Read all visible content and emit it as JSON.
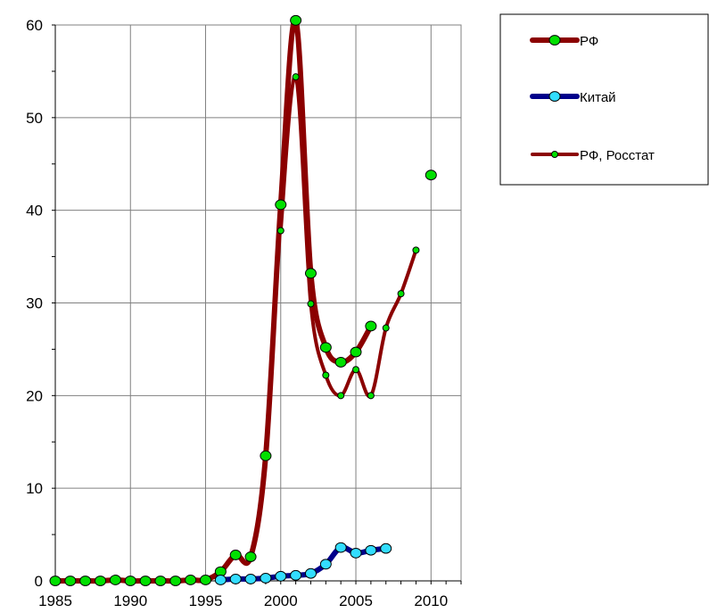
{
  "chart_data": {
    "type": "line",
    "title": "",
    "xlabel": "",
    "ylabel": "",
    "xlim": [
      1985,
      2012
    ],
    "ylim": [
      0,
      60
    ],
    "x_ticks": [
      1985,
      1990,
      1995,
      2000,
      2005,
      2010
    ],
    "x_tick_labels": [
      "1985",
      "1990",
      "1995",
      "2000",
      "2005",
      "2010"
    ],
    "y_ticks": [
      0,
      10,
      20,
      30,
      40,
      50,
      60
    ],
    "y_tick_labels": [
      "0",
      "10",
      "20",
      "30",
      "40",
      "50",
      "60"
    ],
    "grid": true,
    "legend_position": "top-right",
    "series": [
      {
        "name": "РФ",
        "line_color": "#8b0000",
        "marker_color": "#00e000",
        "marker": "large-circle",
        "points": [
          [
            1985,
            0
          ],
          [
            1986,
            0
          ],
          [
            1987,
            0
          ],
          [
            1988,
            0
          ],
          [
            1989,
            0.1
          ],
          [
            1990,
            0
          ],
          [
            1991,
            0
          ],
          [
            1992,
            0
          ],
          [
            1993,
            0
          ],
          [
            1994,
            0.1
          ],
          [
            1995,
            0.1
          ],
          [
            1996,
            1
          ],
          [
            1997,
            2.8
          ],
          [
            1998,
            2.6
          ],
          [
            1999,
            13.5
          ],
          [
            2000,
            40.6
          ],
          [
            2001,
            60.5
          ],
          [
            2002,
            33.2
          ],
          [
            2003,
            25.2
          ],
          [
            2004,
            23.6
          ],
          [
            2005,
            24.7
          ],
          [
            2006,
            27.5
          ]
        ]
      },
      {
        "name": "Китай",
        "line_color": "#00008b",
        "marker_color": "#33ddff",
        "marker": "large-circle",
        "points": [
          [
            1996,
            0.1
          ],
          [
            1997,
            0.2
          ],
          [
            1998,
            0.2
          ],
          [
            1999,
            0.3
          ],
          [
            2000,
            0.5
          ],
          [
            2001,
            0.6
          ],
          [
            2002,
            0.8
          ],
          [
            2003,
            1.8
          ],
          [
            2004,
            3.6
          ],
          [
            2005,
            3
          ],
          [
            2006,
            3.3
          ],
          [
            2007,
            3.5
          ]
        ]
      },
      {
        "name": "РФ, Росстат",
        "line_color": "#8b0000",
        "marker_color": "#00e000",
        "marker": "small-circle",
        "points": [
          [
            2000,
            37.8
          ],
          [
            2001,
            54.4
          ],
          [
            2002,
            29.9
          ],
          [
            2003,
            22.2
          ],
          [
            2004,
            20
          ],
          [
            2005,
            22.8
          ],
          [
            2006,
            20
          ],
          [
            2007,
            27.3
          ],
          [
            2008,
            31
          ],
          [
            2009,
            35.7
          ]
        ]
      }
    ],
    "extra_points": [
      {
        "x": 2010,
        "y": 43.8,
        "marker": "large-circle",
        "marker_color": "#00e000"
      }
    ]
  }
}
